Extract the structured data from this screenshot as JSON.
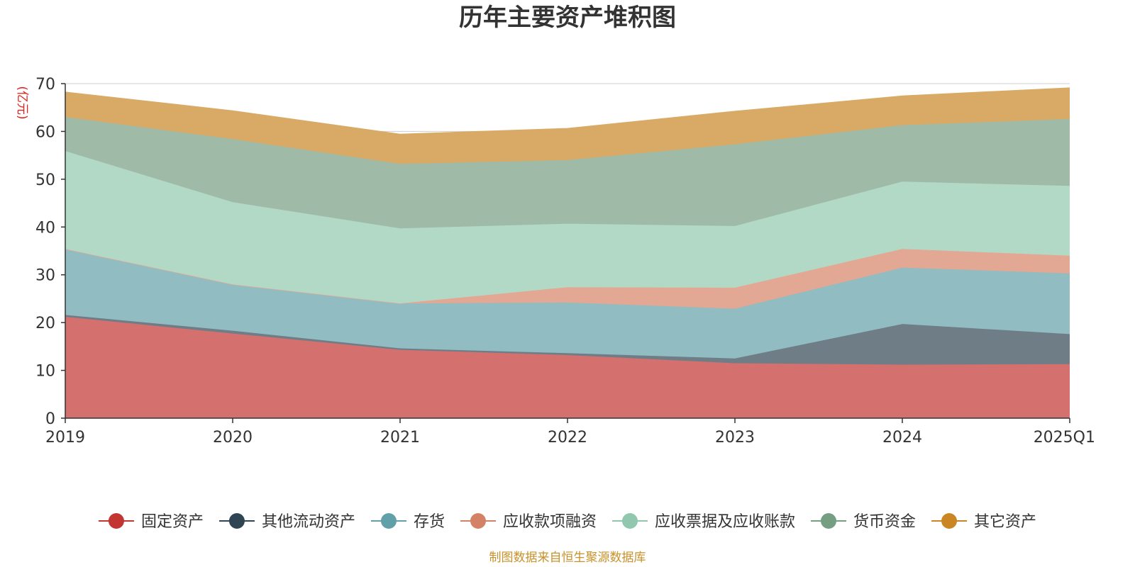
{
  "chart_data": {
    "type": "area",
    "stacked": true,
    "title": "历年主要资产堆积图",
    "unit_label": "(亿元)",
    "categories": [
      "2019",
      "2020",
      "2021",
      "2022",
      "2023",
      "2024",
      "2025Q1"
    ],
    "y_ticks": [
      "0",
      "10",
      "20",
      "30",
      "40",
      "50",
      "60",
      "70"
    ],
    "ylim": [
      0,
      70
    ],
    "grid": true,
    "legend_position": "bottom",
    "series": [
      {
        "name": "固定资产",
        "color": "#c23531",
        "fill": "#d4706e",
        "values": [
          21.2,
          17.7,
          14.3,
          13.2,
          11.5,
          11.2,
          11.3
        ]
      },
      {
        "name": "其他流动资产",
        "color": "#2f4554",
        "fill": "#6f7d87",
        "values": [
          0.4,
          0.6,
          0.3,
          0.4,
          1.0,
          8.5,
          6.3
        ]
      },
      {
        "name": "存货",
        "color": "#61a0a8",
        "fill": "#91bcc2",
        "values": [
          13.8,
          9.7,
          9.4,
          10.6,
          10.4,
          11.8,
          12.7
        ]
      },
      {
        "name": "应收款项融资",
        "color": "#d48265",
        "fill": "#e2a893",
        "values": [
          0.0,
          0.0,
          0.0,
          3.2,
          4.4,
          3.9,
          3.7
        ]
      },
      {
        "name": "应收票据及应收账款",
        "color": "#91c7ae",
        "fill": "#b2d9c6",
        "values": [
          20.5,
          17.2,
          15.7,
          13.3,
          12.9,
          14.1,
          14.6
        ]
      },
      {
        "name": "货币资金",
        "color": "#749f83",
        "fill": "#9fbba8",
        "values": [
          7.1,
          13.2,
          13.5,
          13.3,
          17.1,
          11.8,
          14.0
        ]
      },
      {
        "name": "其它资产",
        "color": "#ca8622",
        "fill": "#d9aa65",
        "values": [
          5.2,
          5.9,
          6.2,
          6.6,
          6.9,
          6.1,
          6.5
        ]
      }
    ],
    "source_note": "制图数据来自恒生聚源数据库"
  }
}
